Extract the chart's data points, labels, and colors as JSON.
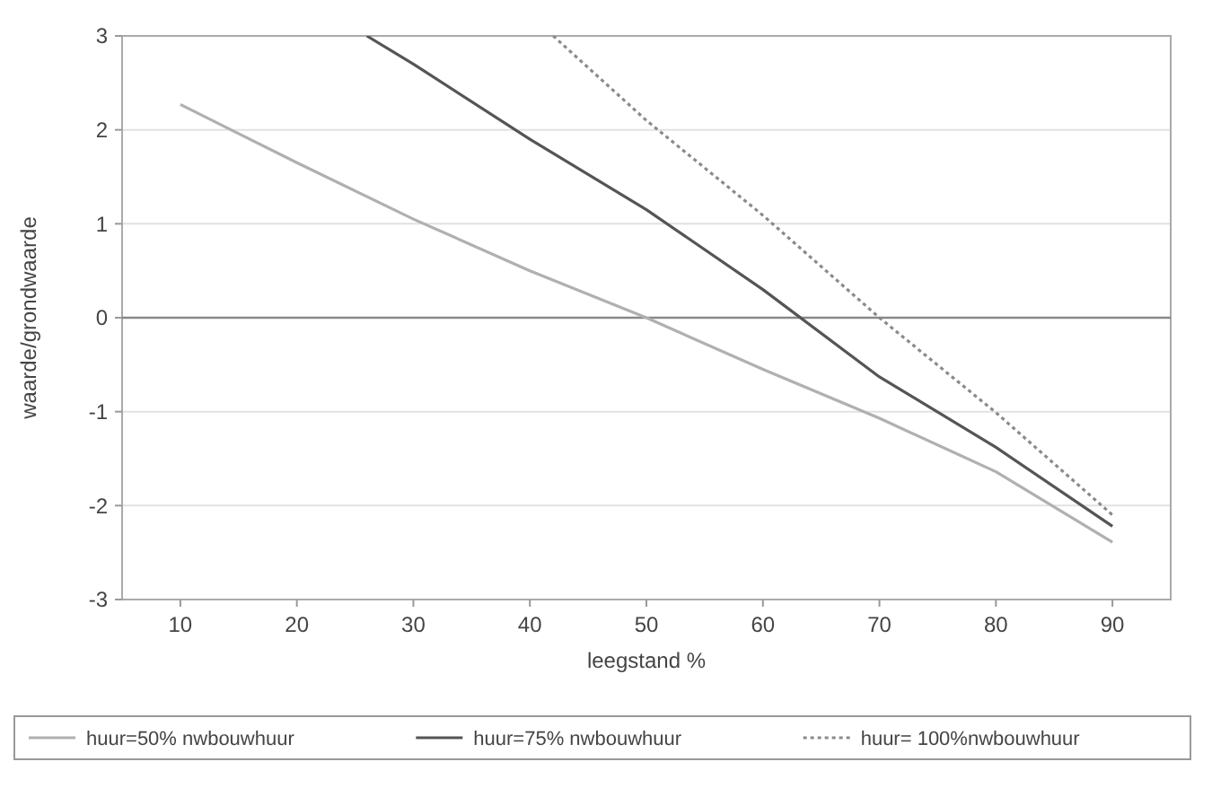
{
  "chart_data": {
    "type": "line",
    "xlabel": "leegstand %",
    "ylabel": "waarde/grondwaarde",
    "xlim": [
      5,
      95
    ],
    "xticks": [
      10,
      20,
      30,
      40,
      50,
      60,
      70,
      80,
      90
    ],
    "ylim": [
      -3,
      3
    ],
    "yticks": [
      -3,
      -2,
      -1,
      0,
      1,
      2,
      3
    ],
    "grid": "y",
    "legend": "bottom",
    "marker": "none",
    "ref_lines": [
      {
        "axis": "y",
        "value": 0,
        "color": "#888888"
      }
    ],
    "series": [
      {
        "name": "huur=50% nwbouwhuur",
        "color": "#b0b0b0",
        "line_style": "solid",
        "x": [
          10,
          20,
          30,
          40,
          50,
          60,
          70,
          80,
          90
        ],
        "values": [
          2.27,
          1.65,
          1.05,
          0.5,
          0,
          -0.55,
          -1.07,
          -1.64,
          -2.39
        ]
      },
      {
        "name": "huur=75% nwbouwhuur",
        "color": "#555555",
        "line_style": "solid",
        "x": [
          26,
          30,
          40,
          50,
          60,
          70,
          80,
          90
        ],
        "values": [
          3,
          2.7,
          1.9,
          1.15,
          0.3,
          -0.63,
          -1.38,
          -2.22
        ]
      },
      {
        "name": "huur= 100%nwbouwhuur",
        "color": "#8a8a8a",
        "line_style": "dotted",
        "x": [
          42,
          50,
          60,
          70,
          80,
          90
        ],
        "values": [
          3,
          2.1,
          1.09,
          0,
          -1.01,
          -2.1
        ]
      }
    ]
  }
}
